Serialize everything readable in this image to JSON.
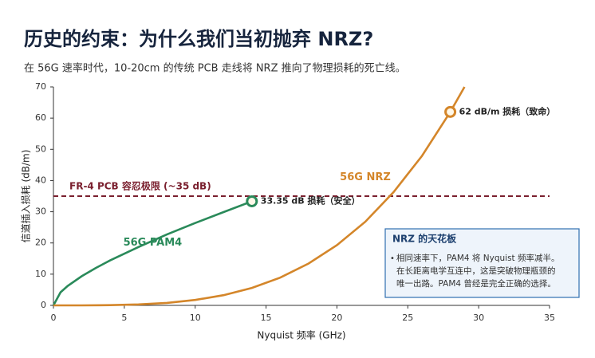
{
  "chart_data": {
    "type": "line",
    "title": "历史的约束：为什么我们当初抛弃 NRZ?",
    "subtitle": "在 56G 速率时代，10-20cm 的传统 PCB 走线将 NRZ 推向了物理损耗的死亡线。",
    "x_label": "Nyquist 频率 (GHz)",
    "y_label": "信道插入损耗 (dB/m)",
    "xlim": [
      0,
      35
    ],
    "xticks": [
      0,
      5,
      10,
      15,
      20,
      25,
      30,
      35
    ],
    "ylim": [
      0,
      70
    ],
    "yticks": [
      0,
      10,
      20,
      30,
      40,
      50,
      60,
      70
    ],
    "grid": false,
    "series": [
      {
        "name": "56G PAM4",
        "color": "#2a8a5a",
        "x": [
          0,
          0.5,
          1,
          2,
          3,
          4,
          6,
          8,
          10,
          12,
          14
        ],
        "values": [
          0,
          4.18,
          6.2,
          9.35,
          12.0,
          14.4,
          18.7,
          22.7,
          26.4,
          29.9,
          33.35
        ]
      },
      {
        "name": "56G NRZ",
        "color": "#d4862a",
        "x": [
          0,
          2,
          4,
          6,
          8,
          10,
          12,
          14,
          16,
          18,
          20,
          22,
          24,
          26,
          28,
          29
        ],
        "values": [
          0,
          0.01,
          0.07,
          0.3,
          0.8,
          1.74,
          3.28,
          5.6,
          8.89,
          13.4,
          19.3,
          26.8,
          36.3,
          47.9,
          62,
          70
        ]
      }
    ],
    "reference_line": {
      "value": 35,
      "label": "FR-4 PCB 容忍极限 (~35 dB)",
      "color": "#7a1f2e"
    },
    "annotations": [
      {
        "x": 14,
        "y": 33.35,
        "label": "33.35 dB 损耗（安全）",
        "color": "#2a8a5a"
      },
      {
        "x": 28,
        "y": 62,
        "label": "62 dB/m 损耗（致命）",
        "color": "#d4862a"
      }
    ],
    "callout": {
      "title": "NRZ 的天花板",
      "lines": [
        "相同速率下，PAM4 将 Nyquist 频率减半。",
        "在长距离电学互连中，这是突破物理瓶颈的",
        "唯一出路。PAM4 曾经是完全正确的选择。"
      ]
    }
  }
}
